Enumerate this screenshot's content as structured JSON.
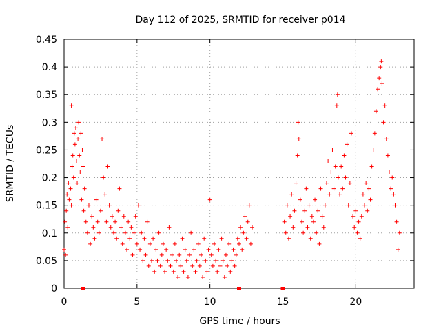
{
  "colors": {
    "points": "#ff0000",
    "axes": "#000000",
    "grid": "#a0a0a0",
    "background": "#ffffff"
  },
  "chart_data": {
    "type": "scatter",
    "title": "Day 112 of 2025, SRMTID for receiver p014",
    "xlabel": "GPS time / hours",
    "ylabel": "SRMTID / TECUs",
    "xlim": [
      0,
      24
    ],
    "ylim": [
      0,
      0.45
    ],
    "xticks": [
      0,
      5,
      10,
      15,
      20
    ],
    "xtick_labels": [
      "0",
      "5",
      "10",
      "15",
      "20"
    ],
    "yticks": [
      0,
      0.05,
      0.1,
      0.15,
      0.2,
      0.25,
      0.3,
      0.35,
      0.4,
      0.45
    ],
    "ytick_labels": [
      "0",
      "0.05",
      "0.1",
      "0.15",
      "0.2",
      "0.25",
      "0.3",
      "0.35",
      "0.4",
      "0.45"
    ],
    "grid": true,
    "marker": "+",
    "series": [
      {
        "name": "SRMTID p014",
        "points": [
          [
            0.0,
            0.07
          ],
          [
            0.05,
            0.12
          ],
          [
            0.1,
            0.06
          ],
          [
            0.15,
            0.14
          ],
          [
            0.2,
            0.17
          ],
          [
            0.25,
            0.11
          ],
          [
            0.3,
            0.19
          ],
          [
            0.35,
            0.16
          ],
          [
            0.4,
            0.21
          ],
          [
            0.45,
            0.18
          ],
          [
            0.5,
            0.15
          ],
          [
            0.5,
            0.33
          ],
          [
            0.55,
            0.22
          ],
          [
            0.6,
            0.24
          ],
          [
            0.65,
            0.2
          ],
          [
            0.7,
            0.28
          ],
          [
            0.75,
            0.26
          ],
          [
            0.8,
            0.29
          ],
          [
            0.85,
            0.23
          ],
          [
            0.9,
            0.19
          ],
          [
            0.95,
            0.27
          ],
          [
            1.0,
            0.3
          ],
          [
            1.05,
            0.24
          ],
          [
            1.1,
            0.21
          ],
          [
            1.15,
            0.28
          ],
          [
            1.2,
            0.16
          ],
          [
            1.25,
            0.25
          ],
          [
            1.3,
            0.22
          ],
          [
            1.35,
            0.14
          ],
          [
            1.4,
            0.18
          ],
          [
            1.5,
            0.12
          ],
          [
            1.6,
            0.1
          ],
          [
            1.7,
            0.15
          ],
          [
            1.8,
            0.08
          ],
          [
            1.9,
            0.13
          ],
          [
            2.0,
            0.11
          ],
          [
            2.1,
            0.09
          ],
          [
            2.2,
            0.16
          ],
          [
            2.3,
            0.12
          ],
          [
            2.4,
            0.1
          ],
          [
            2.5,
            0.14
          ],
          [
            2.6,
            0.27
          ],
          [
            2.7,
            0.2
          ],
          [
            2.8,
            0.17
          ],
          [
            2.9,
            0.12
          ],
          [
            3.0,
            0.22
          ],
          [
            3.1,
            0.15
          ],
          [
            3.2,
            0.11
          ],
          [
            3.3,
            0.13
          ],
          [
            3.4,
            0.1
          ],
          [
            3.5,
            0.12
          ],
          [
            3.6,
            0.09
          ],
          [
            3.7,
            0.14
          ],
          [
            3.8,
            0.18
          ],
          [
            3.9,
            0.11
          ],
          [
            4.0,
            0.08
          ],
          [
            4.1,
            0.13
          ],
          [
            4.2,
            0.1
          ],
          [
            4.3,
            0.07
          ],
          [
            4.4,
            0.12
          ],
          [
            4.5,
            0.09
          ],
          [
            4.6,
            0.11
          ],
          [
            4.7,
            0.06
          ],
          [
            4.8,
            0.1
          ],
          [
            4.9,
            0.13
          ],
          [
            5.0,
            0.08
          ],
          [
            5.1,
            0.15
          ],
          [
            5.2,
            0.07
          ],
          [
            5.3,
            0.1
          ],
          [
            5.4,
            0.05
          ],
          [
            5.5,
            0.09
          ],
          [
            5.6,
            0.06
          ],
          [
            5.7,
            0.12
          ],
          [
            5.8,
            0.04
          ],
          [
            5.9,
            0.08
          ],
          [
            6.0,
            0.05
          ],
          [
            6.1,
            0.09
          ],
          [
            6.2,
            0.03
          ],
          [
            6.3,
            0.07
          ],
          [
            6.4,
            0.05
          ],
          [
            6.5,
            0.1
          ],
          [
            6.6,
            0.04
          ],
          [
            6.7,
            0.06
          ],
          [
            6.8,
            0.08
          ],
          [
            6.9,
            0.03
          ],
          [
            7.0,
            0.07
          ],
          [
            7.1,
            0.05
          ],
          [
            7.2,
            0.11
          ],
          [
            7.3,
            0.04
          ],
          [
            7.4,
            0.06
          ],
          [
            7.5,
            0.03
          ],
          [
            7.6,
            0.08
          ],
          [
            7.7,
            0.05
          ],
          [
            7.8,
            0.02
          ],
          [
            7.9,
            0.06
          ],
          [
            8.0,
            0.04
          ],
          [
            8.1,
            0.09
          ],
          [
            8.2,
            0.03
          ],
          [
            8.3,
            0.07
          ],
          [
            8.4,
            0.05
          ],
          [
            8.5,
            0.02
          ],
          [
            8.6,
            0.06
          ],
          [
            8.7,
            0.1
          ],
          [
            8.8,
            0.04
          ],
          [
            8.9,
            0.07
          ],
          [
            9.0,
            0.03
          ],
          [
            9.1,
            0.05
          ],
          [
            9.2,
            0.08
          ],
          [
            9.3,
            0.04
          ],
          [
            9.4,
            0.06
          ],
          [
            9.5,
            0.02
          ],
          [
            9.6,
            0.09
          ],
          [
            9.7,
            0.05
          ],
          [
            9.8,
            0.03
          ],
          [
            9.9,
            0.07
          ],
          [
            10.0,
            0.16
          ],
          [
            10.1,
            0.06
          ],
          [
            10.2,
            0.04
          ],
          [
            10.3,
            0.08
          ],
          [
            10.4,
            0.05
          ],
          [
            10.5,
            0.03
          ],
          [
            10.6,
            0.07
          ],
          [
            10.7,
            0.04
          ],
          [
            10.8,
            0.09
          ],
          [
            10.9,
            0.05
          ],
          [
            11.0,
            0.02
          ],
          [
            11.1,
            0.06
          ],
          [
            11.2,
            0.04
          ],
          [
            11.3,
            0.08
          ],
          [
            11.4,
            0.03
          ],
          [
            11.5,
            0.05
          ],
          [
            11.6,
            0.07
          ],
          [
            11.7,
            0.04
          ],
          [
            11.8,
            0.06
          ],
          [
            11.9,
            0.09
          ],
          [
            12.0,
            0.08
          ],
          [
            12.1,
            0.11
          ],
          [
            12.2,
            0.07
          ],
          [
            12.3,
            0.1
          ],
          [
            12.4,
            0.13
          ],
          [
            12.5,
            0.09
          ],
          [
            12.6,
            0.12
          ],
          [
            12.7,
            0.15
          ],
          [
            12.8,
            0.08
          ],
          [
            12.9,
            0.11
          ],
          [
            15.1,
            0.12
          ],
          [
            15.2,
            0.1
          ],
          [
            15.3,
            0.15
          ],
          [
            15.4,
            0.09
          ],
          [
            15.5,
            0.13
          ],
          [
            15.6,
            0.17
          ],
          [
            15.7,
            0.11
          ],
          [
            15.8,
            0.14
          ],
          [
            15.9,
            0.19
          ],
          [
            16.0,
            0.24
          ],
          [
            16.05,
            0.3
          ],
          [
            16.1,
            0.27
          ],
          [
            16.2,
            0.16
          ],
          [
            16.3,
            0.12
          ],
          [
            16.4,
            0.1
          ],
          [
            16.5,
            0.14
          ],
          [
            16.6,
            0.18
          ],
          [
            16.7,
            0.11
          ],
          [
            16.8,
            0.15
          ],
          [
            16.9,
            0.09
          ],
          [
            17.0,
            0.13
          ],
          [
            17.1,
            0.12
          ],
          [
            17.2,
            0.16
          ],
          [
            17.3,
            0.1
          ],
          [
            17.4,
            0.14
          ],
          [
            17.5,
            0.08
          ],
          [
            17.6,
            0.18
          ],
          [
            17.7,
            0.13
          ],
          [
            17.8,
            0.11
          ],
          [
            17.9,
            0.15
          ],
          [
            18.0,
            0.19
          ],
          [
            18.1,
            0.23
          ],
          [
            18.2,
            0.17
          ],
          [
            18.3,
            0.21
          ],
          [
            18.4,
            0.25
          ],
          [
            18.5,
            0.18
          ],
          [
            18.6,
            0.22
          ],
          [
            18.7,
            0.33
          ],
          [
            18.75,
            0.35
          ],
          [
            18.8,
            0.2
          ],
          [
            18.9,
            0.17
          ],
          [
            19.0,
            0.22
          ],
          [
            19.1,
            0.18
          ],
          [
            19.2,
            0.24
          ],
          [
            19.3,
            0.2
          ],
          [
            19.4,
            0.26
          ],
          [
            19.5,
            0.15
          ],
          [
            19.6,
            0.19
          ],
          [
            19.7,
            0.28
          ],
          [
            19.8,
            0.13
          ],
          [
            19.9,
            0.11
          ],
          [
            20.0,
            0.14
          ],
          [
            20.1,
            0.1
          ],
          [
            20.2,
            0.12
          ],
          [
            20.3,
            0.09
          ],
          [
            20.4,
            0.13
          ],
          [
            20.5,
            0.17
          ],
          [
            20.6,
            0.15
          ],
          [
            20.7,
            0.19
          ],
          [
            20.8,
            0.14
          ],
          [
            20.9,
            0.18
          ],
          [
            21.0,
            0.16
          ],
          [
            21.1,
            0.22
          ],
          [
            21.2,
            0.25
          ],
          [
            21.3,
            0.28
          ],
          [
            21.4,
            0.32
          ],
          [
            21.5,
            0.36
          ],
          [
            21.6,
            0.38
          ],
          [
            21.7,
            0.4
          ],
          [
            21.75,
            0.41
          ],
          [
            21.8,
            0.37
          ],
          [
            21.9,
            0.3
          ],
          [
            22.0,
            0.33
          ],
          [
            22.1,
            0.27
          ],
          [
            22.2,
            0.24
          ],
          [
            22.3,
            0.21
          ],
          [
            22.4,
            0.18
          ],
          [
            22.5,
            0.2
          ],
          [
            22.6,
            0.17
          ],
          [
            22.7,
            0.15
          ],
          [
            22.8,
            0.12
          ],
          [
            22.9,
            0.07
          ],
          [
            23.0,
            0.1
          ]
        ]
      }
    ],
    "zero_markers": [
      1.3,
      12.0,
      15.0
    ]
  }
}
